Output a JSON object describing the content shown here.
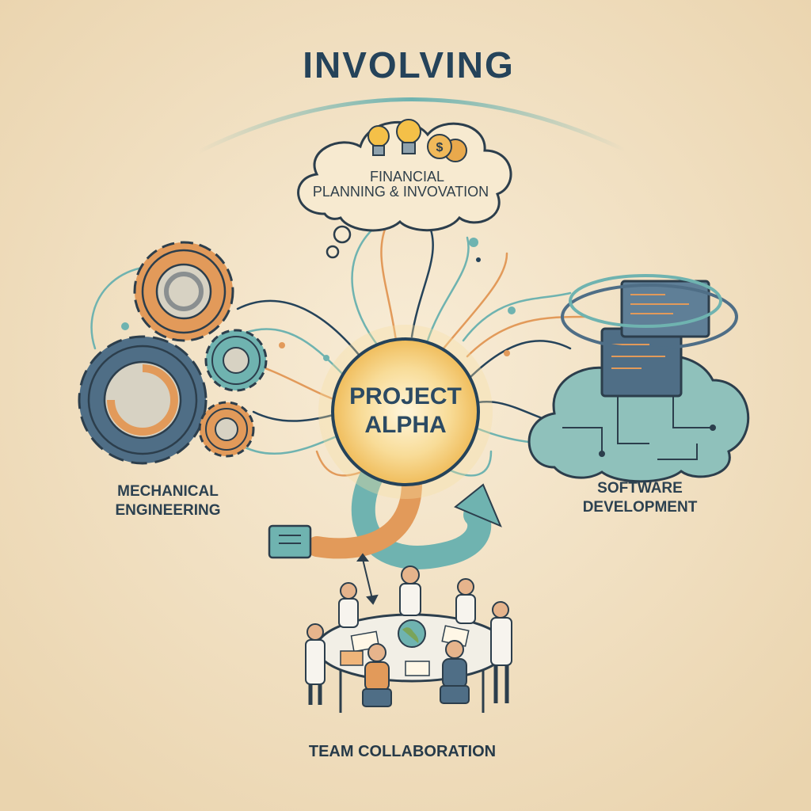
{
  "title": "INVOLVING",
  "center": {
    "line1": "PROJECT",
    "line2": "ALPHA"
  },
  "nodes": {
    "finance": {
      "line1": "FINANCIAL",
      "line2": "PLANNING & INVOVATION"
    },
    "mechanical": {
      "line1": "MECHANICAL",
      "line2": "ENGINEERING"
    },
    "software": {
      "line1": "SOFTWARE",
      "line2": "DEVELOPMENT"
    },
    "team": {
      "label": "TEAM COLLABORATION"
    }
  },
  "colors": {
    "background": "#f3e3c7",
    "navy": "#25435a",
    "teal": "#6fb3b0",
    "orange": "#e29a5a",
    "steel": "#4f6e86",
    "glow": "#f7d27a"
  },
  "icons": [
    "lightbulb-icon",
    "coin-icon",
    "gear-icon",
    "server-icon",
    "cloud-icon",
    "arrow-icon",
    "globe-icon"
  ]
}
